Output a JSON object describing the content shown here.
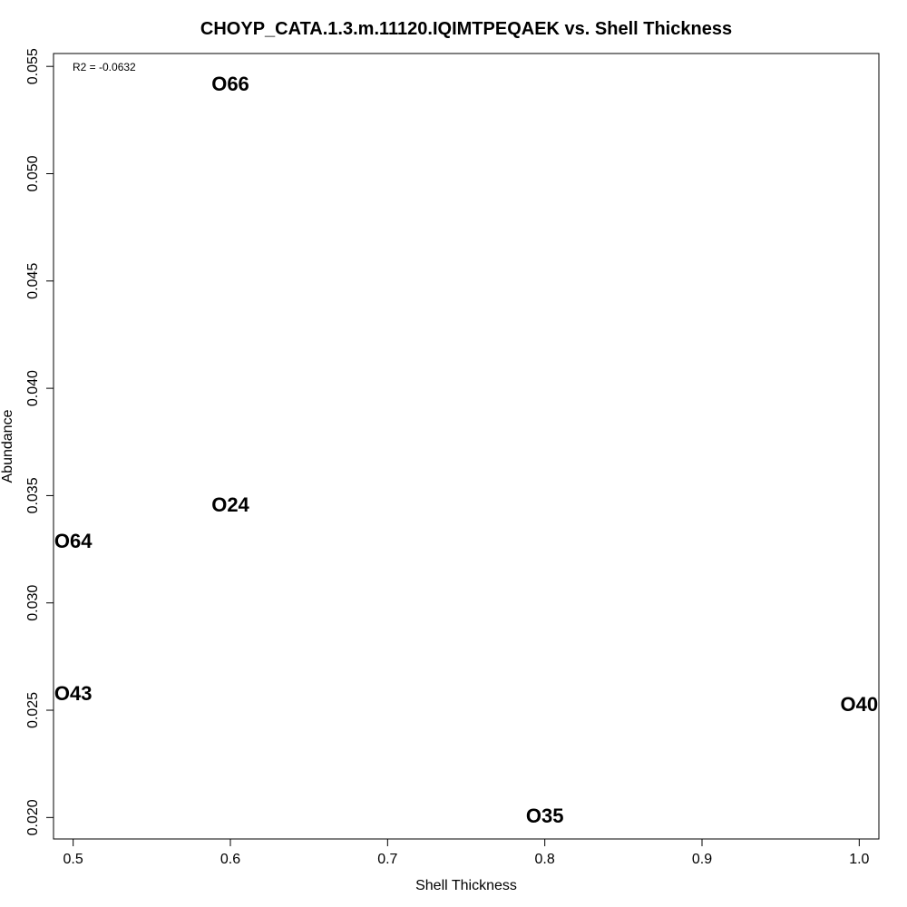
{
  "chart_data": {
    "type": "scatter",
    "title": "CHOYP_CATA.1.3.m.11120.IQIMTPEQAEK vs. Shell Thickness",
    "xlabel": "Shell Thickness",
    "ylabel": "Abundance",
    "annotation": "R2 = -0.0632",
    "xlim": [
      0.4875,
      1.0125
    ],
    "ylim": [
      0.019,
      0.0556
    ],
    "x_ticks": [
      0.5,
      0.6,
      0.7,
      0.8,
      0.9,
      1.0
    ],
    "x_tick_labels": [
      "0.5",
      "0.6",
      "0.7",
      "0.8",
      "0.9",
      "1.0"
    ],
    "y_ticks": [
      0.02,
      0.025,
      0.03,
      0.035,
      0.04,
      0.045,
      0.05,
      0.055
    ],
    "y_tick_labels": [
      "0.020",
      "0.025",
      "0.030",
      "0.035",
      "0.040",
      "0.045",
      "0.050",
      "0.055"
    ],
    "grid": false,
    "points": [
      {
        "label": "O66",
        "x": 0.6,
        "y": 0.0542
      },
      {
        "label": "O24",
        "x": 0.6,
        "y": 0.0346
      },
      {
        "label": "O64",
        "x": 0.5,
        "y": 0.0329
      },
      {
        "label": "O43",
        "x": 0.5,
        "y": 0.0258
      },
      {
        "label": "O40",
        "x": 1.0,
        "y": 0.0253
      },
      {
        "label": "O35",
        "x": 0.8,
        "y": 0.0201
      }
    ]
  }
}
